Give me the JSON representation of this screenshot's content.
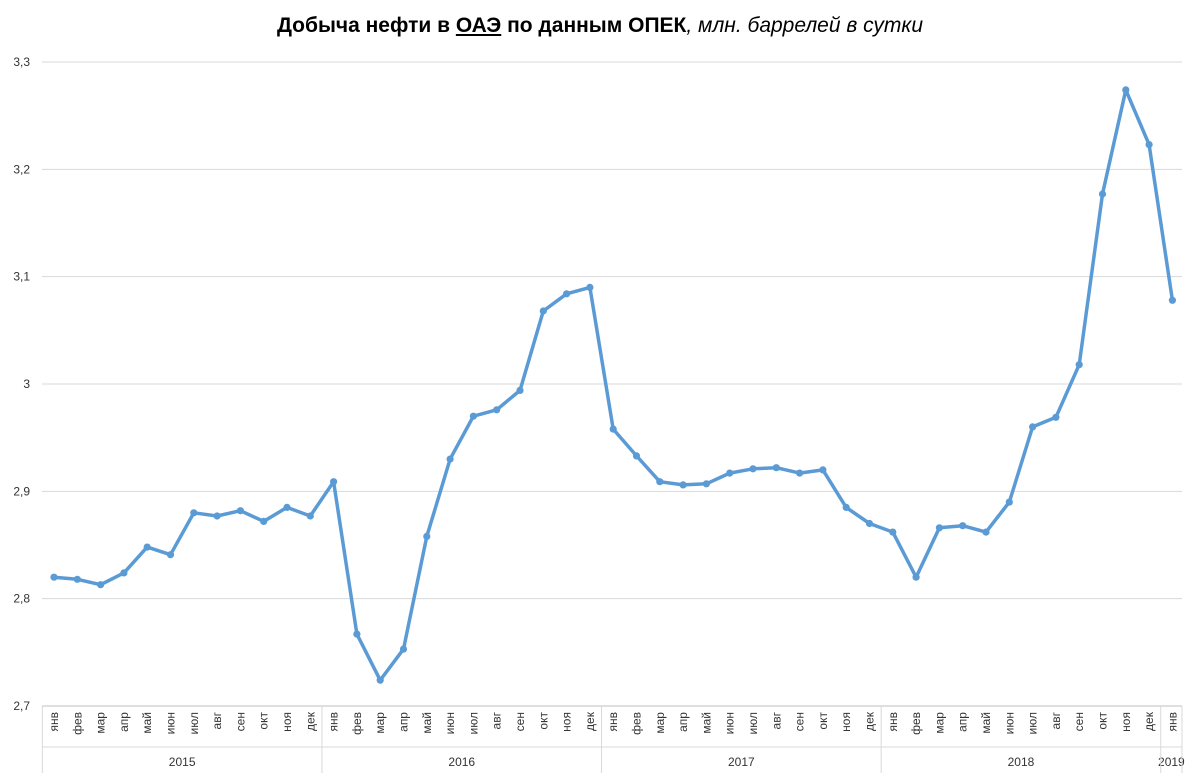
{
  "chart_data": {
    "type": "line",
    "title": {
      "part1": "Добыча нефти в ",
      "part2": "ОАЭ",
      "part3": " по данным ОПЕК",
      "part4": ", млн. баррелей в сутки"
    },
    "ylim": [
      2.7,
      3.3
    ],
    "yticks": [
      "2,7",
      "2,8",
      "2,9",
      "3",
      "3,1",
      "3,2",
      "3,3"
    ],
    "grid": true,
    "legend": "none",
    "line_color": "#5b9bd5",
    "years": [
      {
        "label": "2015",
        "months": [
          "янв",
          "фев",
          "мар",
          "апр",
          "май",
          "июн",
          "июл",
          "авг",
          "сен",
          "окт",
          "ноя",
          "дек"
        ]
      },
      {
        "label": "2016",
        "months": [
          "янв",
          "фев",
          "мар",
          "апр",
          "май",
          "июн",
          "июл",
          "авг",
          "сен",
          "окт",
          "ноя",
          "дек"
        ]
      },
      {
        "label": "2017",
        "months": [
          "янв",
          "фев",
          "мар",
          "апр",
          "май",
          "июн",
          "июл",
          "авг",
          "сен",
          "окт",
          "ноя",
          "дек"
        ]
      },
      {
        "label": "2018",
        "months": [
          "янв",
          "фев",
          "мар",
          "апр",
          "май",
          "июн",
          "июл",
          "авг",
          "сен",
          "окт",
          "ноя",
          "дек"
        ]
      },
      {
        "label": "2019",
        "months": [
          "янв"
        ]
      }
    ],
    "values": [
      2.82,
      2.818,
      2.813,
      2.824,
      2.848,
      2.841,
      2.88,
      2.877,
      2.882,
      2.872,
      2.885,
      2.877,
      2.909,
      2.767,
      2.724,
      2.753,
      2.858,
      2.93,
      2.97,
      2.976,
      2.994,
      3.068,
      3.084,
      3.09,
      2.958,
      2.933,
      2.909,
      2.906,
      2.907,
      2.917,
      2.921,
      2.922,
      2.917,
      2.92,
      2.885,
      2.87,
      2.862,
      2.82,
      2.866,
      2.868,
      2.862,
      2.89,
      2.96,
      2.969,
      3.018,
      3.177,
      3.274,
      3.223,
      3.078
    ]
  }
}
